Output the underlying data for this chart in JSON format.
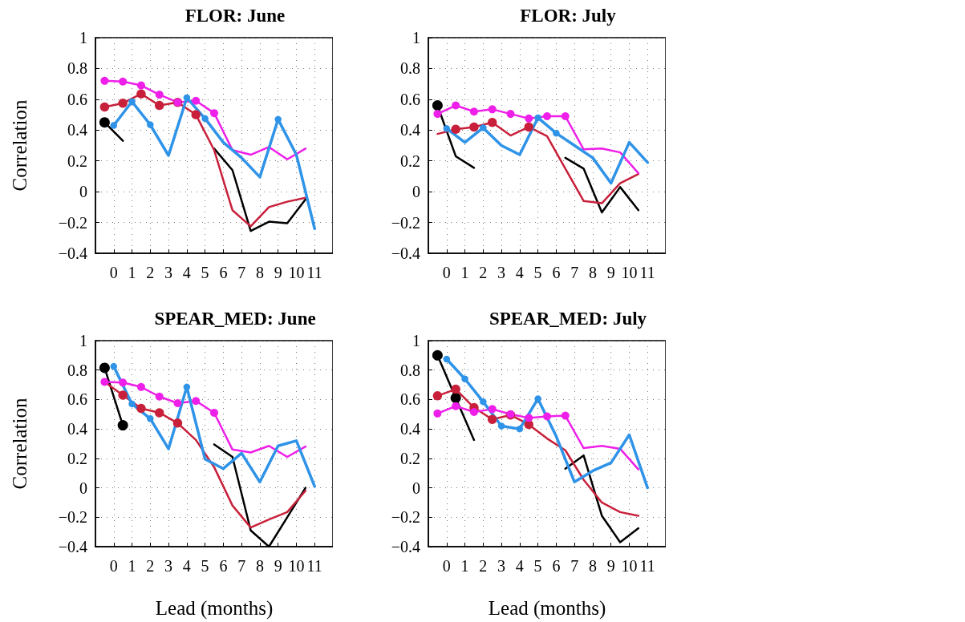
{
  "chart_data": [
    {
      "type": "line",
      "title": "FLOR: June",
      "ylabel": "Correlation",
      "xlim": [
        -1,
        12
      ],
      "xticks": [
        0,
        1,
        2,
        3,
        4,
        5,
        6,
        7,
        8,
        9,
        10,
        11
      ],
      "ylim": [
        -0.4,
        1
      ],
      "yticks": [
        -0.4,
        -0.2,
        0,
        0.2,
        0.4,
        0.6,
        0.8,
        1
      ],
      "grid": true,
      "series": [
        {
          "type": "line",
          "marker": "none",
          "color": "#000000",
          "x": [
            -0.5,
            0.5,
            1.5,
            2.5,
            3.5,
            4.5,
            5.5,
            6.5,
            7.5,
            8.5,
            9.5,
            10.5
          ],
          "values": [
            0.45,
            0.33,
            null,
            null,
            null,
            null,
            0.28,
            0.14,
            -0.255,
            -0.195,
            -0.205,
            -0.05
          ]
        },
        {
          "type": "line",
          "marker": "none",
          "color": "#c8203a",
          "x": [
            -0.5,
            0.5,
            1.5,
            2.5,
            3.5,
            4.5,
            5.5,
            6.5,
            7.5,
            8.5,
            9.5,
            10.5
          ],
          "values": [
            0.55,
            0.575,
            0.635,
            0.56,
            0.58,
            0.5,
            0.27,
            -0.12,
            -0.225,
            -0.1,
            -0.065,
            -0.04
          ]
        },
        {
          "type": "line",
          "marker": "none",
          "color": "#ee1fe8",
          "x": [
            -0.5,
            0.5,
            1.5,
            2.5,
            3.5,
            4.5,
            5.5,
            6.5,
            7.5,
            8.5,
            9.5,
            10.5
          ],
          "values": [
            0.72,
            0.715,
            0.69,
            0.63,
            0.58,
            0.59,
            0.51,
            0.27,
            0.24,
            0.29,
            0.21,
            0.28
          ]
        },
        {
          "type": "line",
          "marker": "none",
          "color": "#2f93e8",
          "x": [
            0,
            1,
            2,
            3,
            4,
            5,
            6,
            7,
            8,
            9,
            10,
            11
          ],
          "values": [
            0.43,
            0.585,
            0.435,
            0.235,
            0.61,
            0.475,
            0.32,
            0.22,
            0.095,
            0.47,
            0.24,
            -0.24
          ]
        },
        {
          "type": "scatter",
          "marker": "circle",
          "color": "#000000",
          "x": [
            -0.5
          ],
          "values": [
            0.45
          ]
        },
        {
          "type": "scatter",
          "marker": "circle",
          "color": "#c8203a",
          "x": [
            -0.5,
            0.5,
            1.5,
            2.5,
            3.5,
            4.5
          ],
          "values": [
            0.55,
            0.575,
            0.635,
            0.56,
            0.58,
            0.5
          ]
        },
        {
          "type": "scatter",
          "marker": "circle",
          "color": "#ee1fe8",
          "x": [
            -0.5,
            0.5,
            1.5,
            2.5,
            3.5,
            4.5,
            5.5
          ],
          "values": [
            0.72,
            0.715,
            0.69,
            0.63,
            0.58,
            0.59,
            0.51
          ]
        },
        {
          "type": "scatter",
          "marker": "circle",
          "color": "#2f93e8",
          "x": [
            0,
            1,
            2,
            4,
            5,
            9
          ],
          "values": [
            0.43,
            0.585,
            0.435,
            0.61,
            0.475,
            0.47
          ]
        }
      ]
    },
    {
      "type": "line",
      "title": "FLOR: July",
      "xlim": [
        -1,
        12
      ],
      "xticks": [
        0,
        1,
        2,
        3,
        4,
        5,
        6,
        7,
        8,
        9,
        10,
        11
      ],
      "ylim": [
        -0.4,
        1
      ],
      "yticks": [
        -0.4,
        -0.2,
        0,
        0.2,
        0.4,
        0.6,
        0.8,
        1
      ],
      "grid": true,
      "series": [
        {
          "type": "line",
          "marker": "none",
          "color": "#000000",
          "x": [
            -0.5,
            0.5,
            1.5,
            2.5,
            3.5,
            4.5,
            5.5,
            6.5,
            7.5,
            8.5,
            9.5,
            10.5
          ],
          "values": [
            0.56,
            0.23,
            0.155,
            null,
            null,
            null,
            null,
            0.22,
            0.15,
            -0.135,
            0.03,
            -0.12
          ]
        },
        {
          "type": "line",
          "marker": "none",
          "color": "#c8203a",
          "x": [
            -0.5,
            0.5,
            1.5,
            2.5,
            3.5,
            4.5,
            5.5,
            6.5,
            7.5,
            8.5,
            9.5,
            10.5
          ],
          "values": [
            0.375,
            0.405,
            0.42,
            0.45,
            0.365,
            0.42,
            0.36,
            0.15,
            -0.06,
            -0.075,
            0.055,
            0.115
          ]
        },
        {
          "type": "line",
          "marker": "none",
          "color": "#ee1fe8",
          "x": [
            -0.5,
            0.5,
            1.5,
            2.5,
            3.5,
            4.5,
            5.5,
            6.5,
            7.5,
            8.5,
            9.5,
            10.5
          ],
          "values": [
            0.505,
            0.56,
            0.52,
            0.535,
            0.505,
            0.475,
            0.49,
            0.49,
            0.275,
            0.28,
            0.255,
            0.12
          ]
        },
        {
          "type": "line",
          "marker": "none",
          "color": "#2f93e8",
          "x": [
            0,
            1,
            2,
            3,
            4,
            5,
            6,
            7,
            8,
            9,
            10,
            11
          ],
          "values": [
            0.41,
            0.32,
            0.415,
            0.3,
            0.24,
            0.48,
            0.38,
            0.3,
            0.22,
            0.055,
            0.32,
            0.19
          ]
        },
        {
          "type": "scatter",
          "marker": "circle",
          "color": "#000000",
          "x": [
            -0.5
          ],
          "values": [
            0.56
          ]
        },
        {
          "type": "scatter",
          "marker": "circle",
          "color": "#c8203a",
          "x": [
            0.5,
            1.5,
            2.5,
            4.5
          ],
          "values": [
            0.405,
            0.42,
            0.45,
            0.42
          ]
        },
        {
          "type": "scatter",
          "marker": "circle",
          "color": "#ee1fe8",
          "x": [
            -0.5,
            0.5,
            1.5,
            2.5,
            3.5,
            4.5,
            5.5,
            6.5
          ],
          "values": [
            0.505,
            0.56,
            0.52,
            0.535,
            0.505,
            0.475,
            0.49,
            0.49
          ]
        },
        {
          "type": "scatter",
          "marker": "circle",
          "color": "#2f93e8",
          "x": [
            0,
            2,
            5,
            6
          ],
          "values": [
            0.41,
            0.415,
            0.48,
            0.38
          ]
        }
      ]
    },
    {
      "type": "line",
      "title": "SPEAR_MED: June",
      "xlabel": "Lead (months)",
      "ylabel": "Correlation",
      "xlim": [
        -1,
        12
      ],
      "xticks": [
        0,
        1,
        2,
        3,
        4,
        5,
        6,
        7,
        8,
        9,
        10,
        11
      ],
      "ylim": [
        -0.4,
        1
      ],
      "yticks": [
        -0.4,
        -0.2,
        0,
        0.2,
        0.4,
        0.6,
        0.8,
        1
      ],
      "grid": true,
      "series": [
        {
          "type": "line",
          "marker": "none",
          "color": "#000000",
          "x": [
            -0.5,
            0.5,
            1.5,
            2.5,
            3.5,
            4.5,
            5.5,
            6.5,
            7.5,
            8.5,
            9.5,
            10.5
          ],
          "values": [
            0.815,
            0.425,
            null,
            null,
            null,
            null,
            0.295,
            0.21,
            -0.29,
            -0.4,
            -0.2,
            0.0
          ]
        },
        {
          "type": "line",
          "marker": "none",
          "color": "#c8203a",
          "x": [
            -0.5,
            0.5,
            1.5,
            2.5,
            3.5,
            4.5,
            5.5,
            6.5,
            7.5,
            8.5,
            9.5,
            10.5
          ],
          "values": [
            0.72,
            0.63,
            0.54,
            0.51,
            0.44,
            0.325,
            0.14,
            -0.12,
            -0.27,
            -0.215,
            -0.165,
            -0.02
          ]
        },
        {
          "type": "line",
          "marker": "none",
          "color": "#ee1fe8",
          "x": [
            -0.5,
            0.5,
            1.5,
            2.5,
            3.5,
            4.5,
            5.5,
            6.5,
            7.5,
            8.5,
            9.5,
            10.5
          ],
          "values": [
            0.72,
            0.715,
            0.685,
            0.62,
            0.575,
            0.59,
            0.51,
            0.26,
            0.24,
            0.285,
            0.21,
            0.28
          ]
        },
        {
          "type": "line",
          "marker": "none",
          "color": "#2f93e8",
          "x": [
            0,
            1,
            2,
            3,
            4,
            5,
            6,
            7,
            8,
            9,
            10,
            11
          ],
          "values": [
            0.825,
            0.57,
            0.47,
            0.265,
            0.685,
            0.195,
            0.13,
            0.235,
            0.04,
            0.285,
            0.32,
            0.01
          ]
        },
        {
          "type": "scatter",
          "marker": "circle",
          "color": "#000000",
          "x": [
            -0.5,
            0.5
          ],
          "values": [
            0.815,
            0.425
          ]
        },
        {
          "type": "scatter",
          "marker": "circle",
          "color": "#c8203a",
          "x": [
            0.5,
            1.5,
            2.5,
            3.5
          ],
          "values": [
            0.63,
            0.54,
            0.51,
            0.44
          ]
        },
        {
          "type": "scatter",
          "marker": "circle",
          "color": "#ee1fe8",
          "x": [
            -0.5,
            0.5,
            1.5,
            2.5,
            3.5,
            4.5,
            5.5
          ],
          "values": [
            0.72,
            0.715,
            0.685,
            0.62,
            0.575,
            0.59,
            0.51
          ]
        },
        {
          "type": "scatter",
          "marker": "circle",
          "color": "#2f93e8",
          "x": [
            0,
            1,
            2,
            4
          ],
          "values": [
            0.825,
            0.57,
            0.47,
            0.685
          ]
        }
      ]
    },
    {
      "type": "line",
      "title": "SPEAR_MED: July",
      "xlabel": "Lead (months)",
      "xlim": [
        -1,
        12
      ],
      "xticks": [
        0,
        1,
        2,
        3,
        4,
        5,
        6,
        7,
        8,
        9,
        10,
        11
      ],
      "ylim": [
        -0.4,
        1
      ],
      "yticks": [
        -0.4,
        -0.2,
        0,
        0.2,
        0.4,
        0.6,
        0.8,
        1
      ],
      "grid": true,
      "series": [
        {
          "type": "line",
          "marker": "none",
          "color": "#000000",
          "x": [
            -0.5,
            0.5,
            1.5,
            2.5,
            3.5,
            4.5,
            5.5,
            6.5,
            7.5,
            8.5,
            9.5,
            10.5
          ],
          "values": [
            0.9,
            0.61,
            0.325,
            null,
            null,
            null,
            null,
            0.13,
            0.22,
            -0.19,
            -0.37,
            -0.275
          ]
        },
        {
          "type": "line",
          "marker": "none",
          "color": "#c8203a",
          "x": [
            -0.5,
            0.5,
            1.5,
            2.5,
            3.5,
            4.5,
            5.5,
            6.5,
            7.5,
            8.5,
            9.5,
            10.5
          ],
          "values": [
            0.625,
            0.67,
            0.545,
            0.465,
            0.495,
            0.43,
            0.335,
            0.255,
            0.055,
            -0.1,
            -0.165,
            -0.19
          ]
        },
        {
          "type": "line",
          "marker": "none",
          "color": "#ee1fe8",
          "x": [
            -0.5,
            0.5,
            1.5,
            2.5,
            3.5,
            4.5,
            5.5,
            6.5,
            7.5,
            8.5,
            9.5,
            10.5
          ],
          "values": [
            0.505,
            0.555,
            0.515,
            0.535,
            0.5,
            0.475,
            0.485,
            0.49,
            0.27,
            0.285,
            0.265,
            0.125
          ]
        },
        {
          "type": "line",
          "marker": "none",
          "color": "#2f93e8",
          "x": [
            0,
            1,
            2,
            3,
            4,
            5,
            6,
            7,
            8,
            9,
            10,
            11
          ],
          "values": [
            0.875,
            0.74,
            0.585,
            0.42,
            0.4,
            0.605,
            0.35,
            0.04,
            0.115,
            0.17,
            0.36,
            0.0
          ]
        },
        {
          "type": "scatter",
          "marker": "circle",
          "color": "#000000",
          "x": [
            -0.5,
            0.5
          ],
          "values": [
            0.9,
            0.61
          ]
        },
        {
          "type": "scatter",
          "marker": "circle",
          "color": "#c8203a",
          "x": [
            -0.5,
            0.5,
            1.5,
            2.5,
            3.5,
            4.5
          ],
          "values": [
            0.625,
            0.67,
            0.545,
            0.465,
            0.495,
            0.43
          ]
        },
        {
          "type": "scatter",
          "marker": "circle",
          "color": "#ee1fe8",
          "x": [
            -0.5,
            0.5,
            1.5,
            2.5,
            3.5,
            4.5,
            5.5,
            6.5
          ],
          "values": [
            0.505,
            0.555,
            0.515,
            0.535,
            0.5,
            0.475,
            0.485,
            0.49
          ]
        },
        {
          "type": "scatter",
          "marker": "circle",
          "color": "#2f93e8",
          "x": [
            0,
            1,
            2,
            3,
            4,
            5
          ],
          "values": [
            0.875,
            0.74,
            0.585,
            0.42,
            0.4,
            0.605
          ]
        }
      ]
    }
  ]
}
